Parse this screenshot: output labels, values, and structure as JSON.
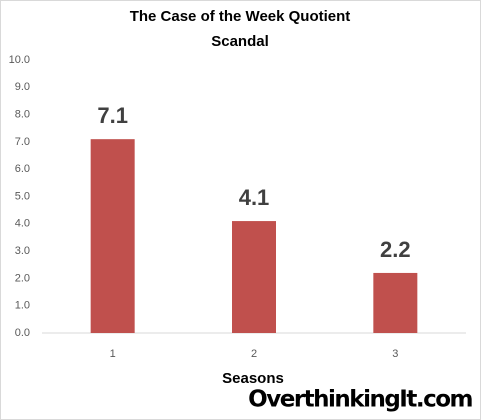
{
  "chart_data": {
    "type": "bar",
    "title": "The Case of the Week Quotient",
    "subtitle": "Scandal",
    "categories": [
      "1",
      "2",
      "3"
    ],
    "values": [
      7.1,
      4.1,
      2.2
    ],
    "color": "#c0504d",
    "x_label": "Seasons",
    "annotation": "OverthinkingIt.com",
    "ylim": [
      0,
      10
    ],
    "yticks": [
      {
        "value": 0,
        "label": "0.0"
      },
      {
        "value": 1,
        "label": "1.0"
      },
      {
        "value": 2,
        "label": "2.0"
      },
      {
        "value": 3,
        "label": "3.0"
      },
      {
        "value": 4,
        "label": "4.0"
      },
      {
        "value": 5,
        "label": "5.0"
      },
      {
        "value": 6,
        "label": "6.0"
      },
      {
        "value": 7,
        "label": "7.0"
      },
      {
        "value": 8,
        "label": "8.0"
      },
      {
        "value": 9,
        "label": "9.0"
      },
      {
        "value": 10,
        "label": "10.0"
      }
    ],
    "grid": false
  }
}
